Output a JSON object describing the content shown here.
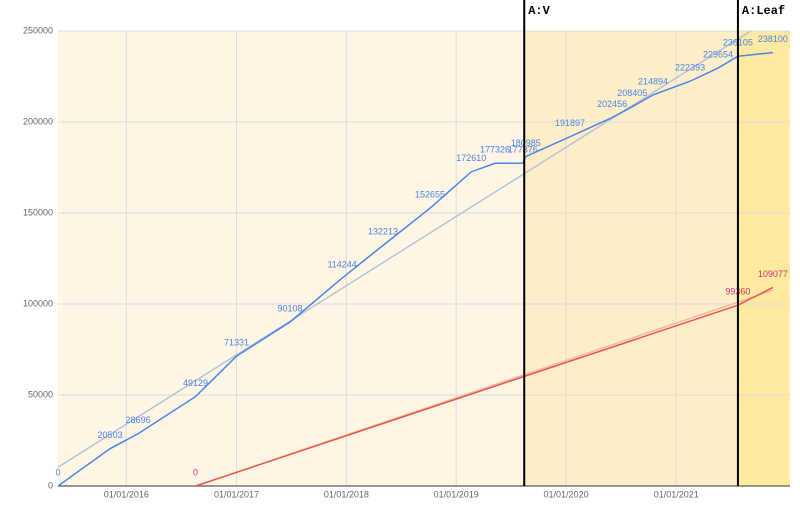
{
  "chart_data": {
    "type": "line",
    "xlim": [
      "2015-05-19",
      "2022-01-14"
    ],
    "xticks": [
      {
        "value": "2016-01-01",
        "label": "01/01/2016"
      },
      {
        "value": "2017-01-01",
        "label": "01/01/2017"
      },
      {
        "value": "2018-01-01",
        "label": "01/01/2018"
      },
      {
        "value": "2019-01-01",
        "label": "01/01/2019"
      },
      {
        "value": "2020-01-01",
        "label": "01/01/2020"
      },
      {
        "value": "2021-01-01",
        "label": "01/01/2021"
      }
    ],
    "ylim": [
      0,
      250000
    ],
    "yticks": [
      0,
      50000,
      100000,
      150000,
      200000,
      250000
    ],
    "grid": true,
    "trendline": true,
    "band_colors": [
      "#fef5e4",
      "#fdedc8",
      "#fde9a0"
    ],
    "annotations": [
      {
        "x": "2019-08-15",
        "label": "A:V"
      },
      {
        "x": "2021-07-25",
        "label": "A:Leaf"
      }
    ],
    "series": [
      {
        "color": "#4a86e8",
        "trend_color": "#b7c4d8",
        "x": [
          "2015-05-19",
          "2015-11-08",
          "2016-02-09",
          "2016-08-18",
          "2017-01-01",
          "2017-06-28",
          "2017-12-18",
          "2018-05-03",
          "2018-10-06",
          "2019-02-20",
          "2019-05-10",
          "2019-08-10",
          "2019-08-20",
          "2020-01-14",
          "2020-06-02",
          "2020-08-08",
          "2020-10-16",
          "2021-02-16",
          "2021-05-20",
          "2021-07-25",
          "2021-11-18"
        ],
        "values": [
          0,
          20503,
          28696,
          49129,
          71331,
          90108,
          114244,
          132213,
          152655,
          172610,
          177326,
          177376,
          180985,
          191897,
          202456,
          208405,
          214894,
          222393,
          229654,
          236105,
          238100
        ]
      },
      {
        "color": "#e8574a",
        "trend_color": "#f0b8a8",
        "label_color": "#d6336c",
        "x": [
          "2016-08-18",
          "2021-07-25",
          "2021-11-18"
        ],
        "values": [
          0,
          99360,
          109077
        ]
      }
    ]
  }
}
